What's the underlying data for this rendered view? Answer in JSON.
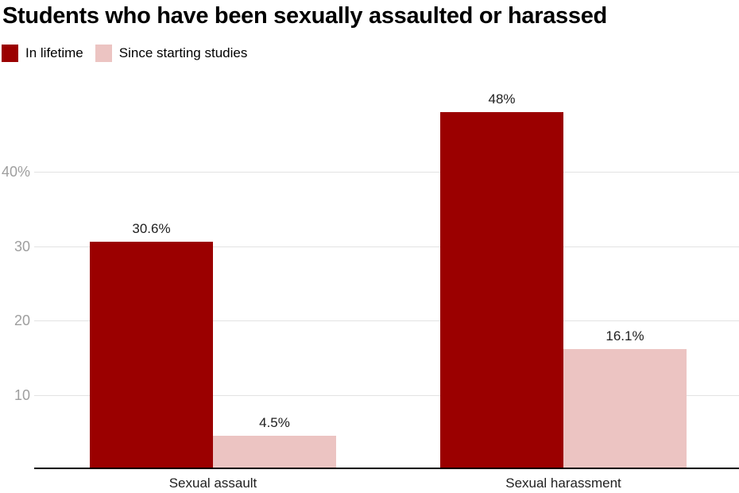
{
  "title": "Students who have been sexually assaulted or harassed",
  "legend": [
    {
      "label": "In lifetime",
      "color": "#9b0000"
    },
    {
      "label": "Since starting studies",
      "color": "#ecc4c2"
    }
  ],
  "colors": {
    "series_dark_red": "#9b0000",
    "series_pink": "#ecc4c2",
    "gridline": "#e3e3e3",
    "tick_text": "#9e9e9e",
    "axis_line": "#000000",
    "label_text": "#212121"
  },
  "chart_data": {
    "type": "bar",
    "categories": [
      "Sexual assault",
      "Sexual harassment"
    ],
    "series": [
      {
        "name": "In lifetime",
        "color": "#9b0000",
        "values": [
          30.6,
          48
        ]
      },
      {
        "name": "Since starting studies",
        "color": "#ecc4c2",
        "values": [
          4.5,
          16.1
        ]
      }
    ],
    "value_labels": [
      [
        "30.6%",
        "48%"
      ],
      [
        "4.5%",
        "16.1%"
      ]
    ],
    "title": "Students who have been sexually assaulted or harassed",
    "xlabel": "",
    "ylabel": "",
    "ylim": [
      0,
      50
    ],
    "yticks": [
      {
        "value": 10,
        "label": "10"
      },
      {
        "value": 20,
        "label": "20"
      },
      {
        "value": 30,
        "label": "30"
      },
      {
        "value": 40,
        "label": "40%"
      }
    ],
    "grid": true,
    "legend_position": "top-left"
  }
}
